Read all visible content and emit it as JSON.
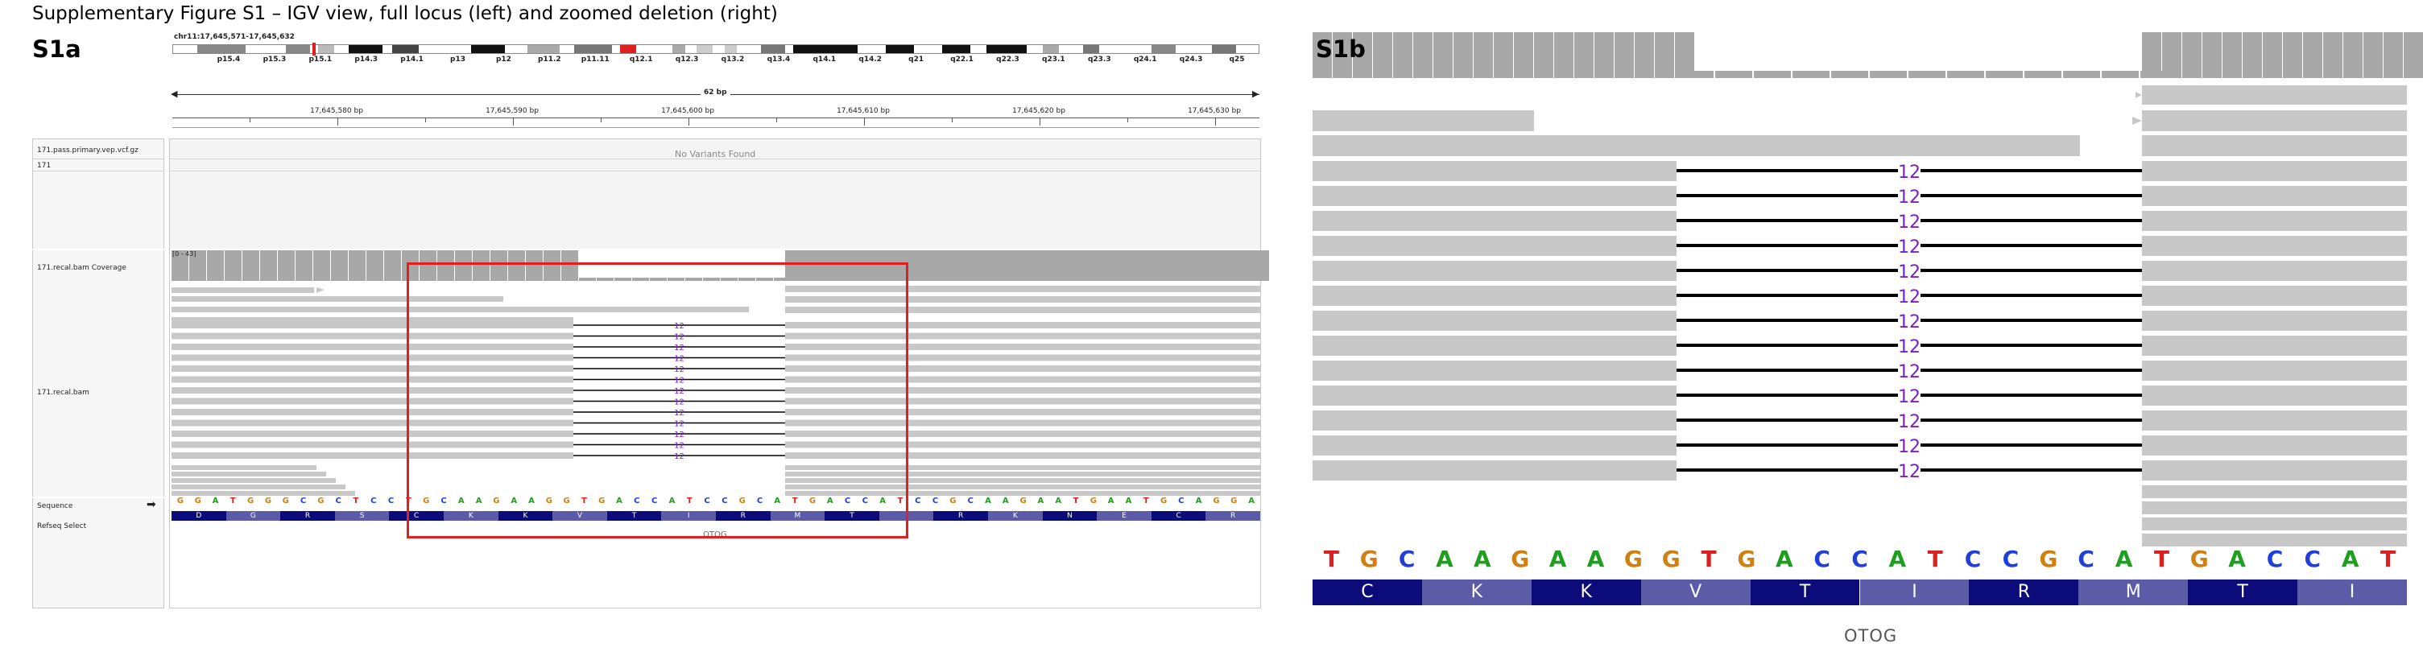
{
  "figure_title": "Supplementary Figure S1 – IGV view, full locus (left) and zoomed deletion (right)",
  "panel_a": {
    "label": "S1a",
    "locus": "chr11:17,645,571-17,645,632",
    "cytobands": [
      "p15.4",
      "p15.3",
      "p15.1",
      "p14.3",
      "p14.1",
      "p13",
      "p12",
      "p11.2",
      "p11.11",
      "q12.1",
      "q12.3",
      "q13.2",
      "q13.4",
      "q14.1",
      "q14.2",
      "q21",
      "q22.1",
      "q22.3",
      "q23.1",
      "q23.3",
      "q24.1",
      "q24.3",
      "q25"
    ],
    "span_label": "62 bp",
    "ruler_ticks": [
      "17,645,580 bp",
      "17,645,590 bp",
      "17,645,600 bp",
      "17,645,610 bp",
      "17,645,620 bp",
      "17,645,630 bp"
    ],
    "tracks": {
      "vcf_file": "171.pass.primary.vep.vcf.gz",
      "sample": "171",
      "no_variants": "No Variants Found",
      "coverage": "171.recal.bam Coverage",
      "coverage_range": "[0 - 43]",
      "bam": "171.recal.bam",
      "sequence": "Sequence",
      "refseq": "Refseq Select",
      "sequence_arrow": "➡"
    },
    "sequence": "GGATGGGCGCTCCTGCAAGAAGGTGACCATCCGCATGACCATCCGCAAGAATGAATGCAGGA",
    "amino_acids": [
      "D",
      "G",
      "R",
      "S",
      "C",
      "K",
      "K",
      "V",
      "T",
      "I",
      "R",
      "M",
      "T",
      "",
      "R",
      "K",
      "N",
      "E",
      "C",
      "R"
    ],
    "deletion_label": "12",
    "gene": "OTOG"
  },
  "panel_b": {
    "label": "S1b",
    "sequence": "TGCAAGAAGGTGACCATCCGCATGACCAT",
    "amino_acids": [
      "C",
      "K",
      "K",
      "V",
      "T",
      "I",
      "R",
      "M",
      "T",
      "I"
    ],
    "deletion_label": "12",
    "gene": "OTOG"
  },
  "colors": {
    "A": "#1f9e1f",
    "C": "#1f3fd8",
    "G": "#d1800f",
    "T": "#dd1f1f",
    "read": "#c8c8c8",
    "coverage": "#a8a8a8",
    "aa_dark": "#0b0b7a",
    "aa_light": "#5b5ba8",
    "deletion_text": "#7a1fc8",
    "highlight": "#e02020"
  }
}
